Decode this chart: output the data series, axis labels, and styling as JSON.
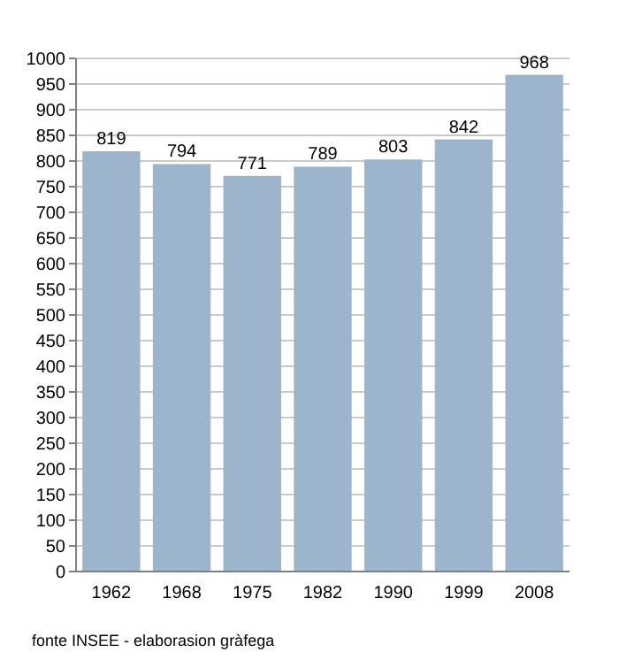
{
  "chart_data": {
    "type": "bar",
    "categories": [
      "1962",
      "1968",
      "1975",
      "1982",
      "1990",
      "1999",
      "2008"
    ],
    "values": [
      819,
      794,
      771,
      789,
      803,
      842,
      968
    ],
    "color": "#9cb5cc",
    "data_labels": true,
    "ylim": [
      0,
      1000
    ],
    "yticks": [
      0,
      50,
      100,
      150,
      200,
      250,
      300,
      350,
      400,
      450,
      500,
      550,
      600,
      650,
      700,
      750,
      800,
      850,
      900,
      950,
      1000
    ],
    "grid": "y",
    "annotations": [
      "fonte INSEE - elaborasion gràfega"
    ]
  }
}
